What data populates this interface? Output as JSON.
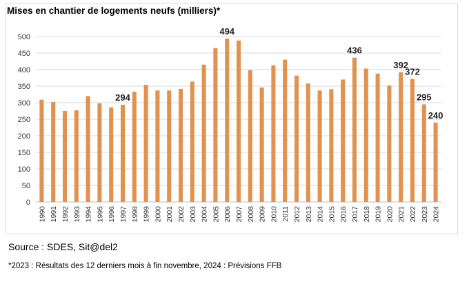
{
  "chart_data": {
    "type": "bar",
    "title": "Mises en chantier de logements neufs (milliers)*",
    "categories": [
      "1990",
      "1991",
      "1992",
      "1993",
      "1994",
      "1995",
      "1996",
      "1997",
      "1998",
      "1999",
      "2000",
      "2001",
      "2002",
      "2003",
      "2004",
      "2005",
      "2006",
      "2007",
      "2008",
      "2009",
      "2010",
      "2011",
      "2012",
      "2013",
      "2014",
      "2015",
      "2016",
      "2017",
      "2018",
      "2019",
      "2020",
      "2021",
      "2022",
      "2023",
      "2024"
    ],
    "values": [
      309,
      302,
      275,
      277,
      320,
      298,
      286,
      294,
      333,
      354,
      337,
      337,
      342,
      364,
      415,
      465,
      494,
      488,
      398,
      346,
      413,
      430,
      382,
      358,
      337,
      341,
      370,
      436,
      403,
      388,
      352,
      392,
      372,
      295,
      240
    ],
    "data_labels": {
      "1997": "294",
      "2006": "494",
      "2017": "436",
      "2021": "392",
      "2022": "372",
      "2023": "295",
      "2024": "240"
    },
    "yticks": [
      "0",
      "50",
      "100",
      "150",
      "200",
      "250",
      "300",
      "350",
      "400",
      "450",
      "500"
    ],
    "ylim": [
      0,
      500
    ],
    "grid": true,
    "bar_color": "#E0924E",
    "grid_color": "#d9d9d9"
  },
  "source": "Source : SDES, Sit@del2",
  "footnote": "*2023 : Résultats des 12 derniers mois à fin novembre, 2024 : Prévisions FFB"
}
